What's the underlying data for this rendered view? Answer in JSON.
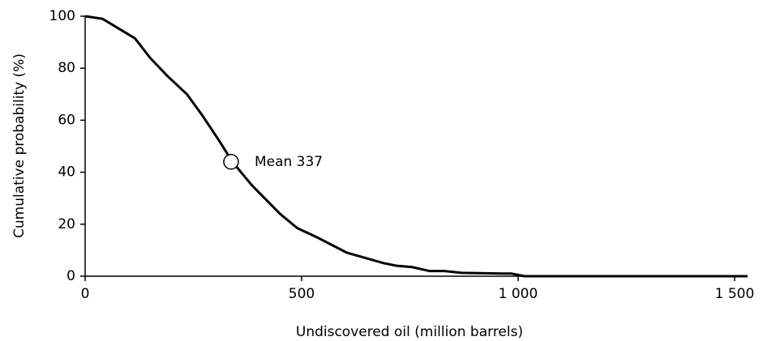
{
  "chart_data": {
    "type": "line",
    "x_label": "Undiscovered oil (million barrels)",
    "y_label": "Cumulative probability (%)",
    "series": [
      {
        "name": "Cumulative probability",
        "color": "#000000",
        "x": [
          0,
          40,
          115,
          150,
          190,
          235,
          270,
          310,
          340,
          385,
          450,
          490,
          535,
          605,
          690,
          720,
          755,
          795,
          830,
          870,
          965,
          985,
          1015,
          1530
        ],
        "values": [
          100,
          99,
          91.5,
          84,
          77,
          70,
          62,
          52,
          44,
          35,
          24,
          18.5,
          15,
          9,
          5,
          4,
          3.5,
          2,
          2,
          1.3,
          1,
          1,
          0,
          0
        ]
      }
    ],
    "annotations": [
      {
        "text": "Mean 337",
        "x": 337,
        "y": 44
      }
    ],
    "xlim": [
      0,
      1530
    ],
    "xticks": [
      0,
      500,
      {
        "value": 1000,
        "label": "1 000"
      },
      {
        "value": 1500,
        "label": "1 500"
      }
    ],
    "ylim": [
      0,
      100
    ],
    "yticks": [
      0,
      20,
      40,
      60,
      80,
      100
    ],
    "grid": false
  }
}
